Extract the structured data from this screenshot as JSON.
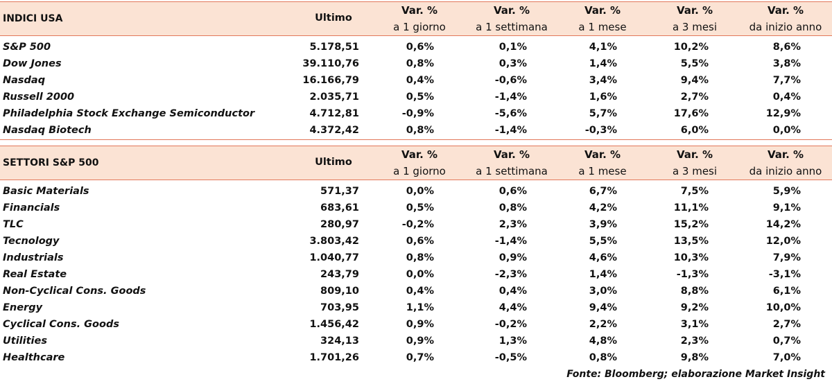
{
  "columns": {
    "ultimo": "Ultimo",
    "var_top": "Var. %",
    "day": "a 1 giorno",
    "week": "a 1 settimana",
    "month": "a 1 mese",
    "three_months": "a 3 mesi",
    "ytd": "da inizio anno"
  },
  "tables": [
    {
      "title": "INDICI USA",
      "rows": [
        {
          "name": "S&P 500",
          "ultimo": "5.178,51",
          "d": "0,6%",
          "w": "0,1%",
          "m": "4,1%",
          "m3": "10,2%",
          "ytd": "8,6%"
        },
        {
          "name": "Dow Jones",
          "ultimo": "39.110,76",
          "d": "0,8%",
          "w": "0,3%",
          "m": "1,4%",
          "m3": "5,5%",
          "ytd": "3,8%"
        },
        {
          "name": "Nasdaq",
          "ultimo": "16.166,79",
          "d": "0,4%",
          "w": "-0,6%",
          "m": "3,4%",
          "m3": "9,4%",
          "ytd": "7,7%"
        },
        {
          "name": "Russell 2000",
          "ultimo": "2.035,71",
          "d": "0,5%",
          "w": "-1,4%",
          "m": "1,6%",
          "m3": "2,7%",
          "ytd": "0,4%"
        },
        {
          "name": "Philadelphia Stock Exchange Semiconductor",
          "ultimo": "4.712,81",
          "d": "-0,9%",
          "w": "-5,6%",
          "m": "5,7%",
          "m3": "17,6%",
          "ytd": "12,9%"
        },
        {
          "name": "Nasdaq Biotech",
          "ultimo": "4.372,42",
          "d": "0,8%",
          "w": "-1,4%",
          "m": "-0,3%",
          "m3": "6,0%",
          "ytd": "0,0%"
        }
      ]
    },
    {
      "title": "SETTORI S&P 500",
      "rows": [
        {
          "name": "Basic Materials",
          "ultimo": "571,37",
          "d": "0,0%",
          "w": "0,6%",
          "m": "6,7%",
          "m3": "7,5%",
          "ytd": "5,9%"
        },
        {
          "name": "Financials",
          "ultimo": "683,61",
          "d": "0,5%",
          "w": "0,8%",
          "m": "4,2%",
          "m3": "11,1%",
          "ytd": "9,1%"
        },
        {
          "name": "TLC",
          "ultimo": "280,97",
          "d": "-0,2%",
          "w": "2,3%",
          "m": "3,9%",
          "m3": "15,2%",
          "ytd": "14,2%"
        },
        {
          "name": "Tecnology",
          "ultimo": "3.803,42",
          "d": "0,6%",
          "w": "-1,4%",
          "m": "5,5%",
          "m3": "13,5%",
          "ytd": "12,0%"
        },
        {
          "name": "Industrials",
          "ultimo": "1.040,77",
          "d": "0,8%",
          "w": "0,9%",
          "m": "4,6%",
          "m3": "10,3%",
          "ytd": "7,9%"
        },
        {
          "name": "Real Estate",
          "ultimo": "243,79",
          "d": "0,0%",
          "w": "-2,3%",
          "m": "1,4%",
          "m3": "-1,3%",
          "ytd": "-3,1%"
        },
        {
          "name": "Non-Cyclical Cons. Goods",
          "ultimo": "809,10",
          "d": "0,4%",
          "w": "0,4%",
          "m": "3,0%",
          "m3": "8,8%",
          "ytd": "6,1%"
        },
        {
          "name": "Energy",
          "ultimo": "703,95",
          "d": "1,1%",
          "w": "4,4%",
          "m": "9,4%",
          "m3": "9,2%",
          "ytd": "10,0%"
        },
        {
          "name": "Cyclical Cons. Goods",
          "ultimo": "1.456,42",
          "d": "0,9%",
          "w": "-0,2%",
          "m": "2,2%",
          "m3": "3,1%",
          "ytd": "2,7%"
        },
        {
          "name": "Utilities",
          "ultimo": "324,13",
          "d": "0,9%",
          "w": "1,3%",
          "m": "4,8%",
          "m3": "2,3%",
          "ytd": "0,7%"
        },
        {
          "name": "Healthcare",
          "ultimo": "1.701,26",
          "d": "0,7%",
          "w": "-0,5%",
          "m": "0,8%",
          "m3": "9,8%",
          "ytd": "7,0%"
        }
      ]
    }
  ],
  "source": "Fonte: Bloomberg; elaborazione Market Insight"
}
